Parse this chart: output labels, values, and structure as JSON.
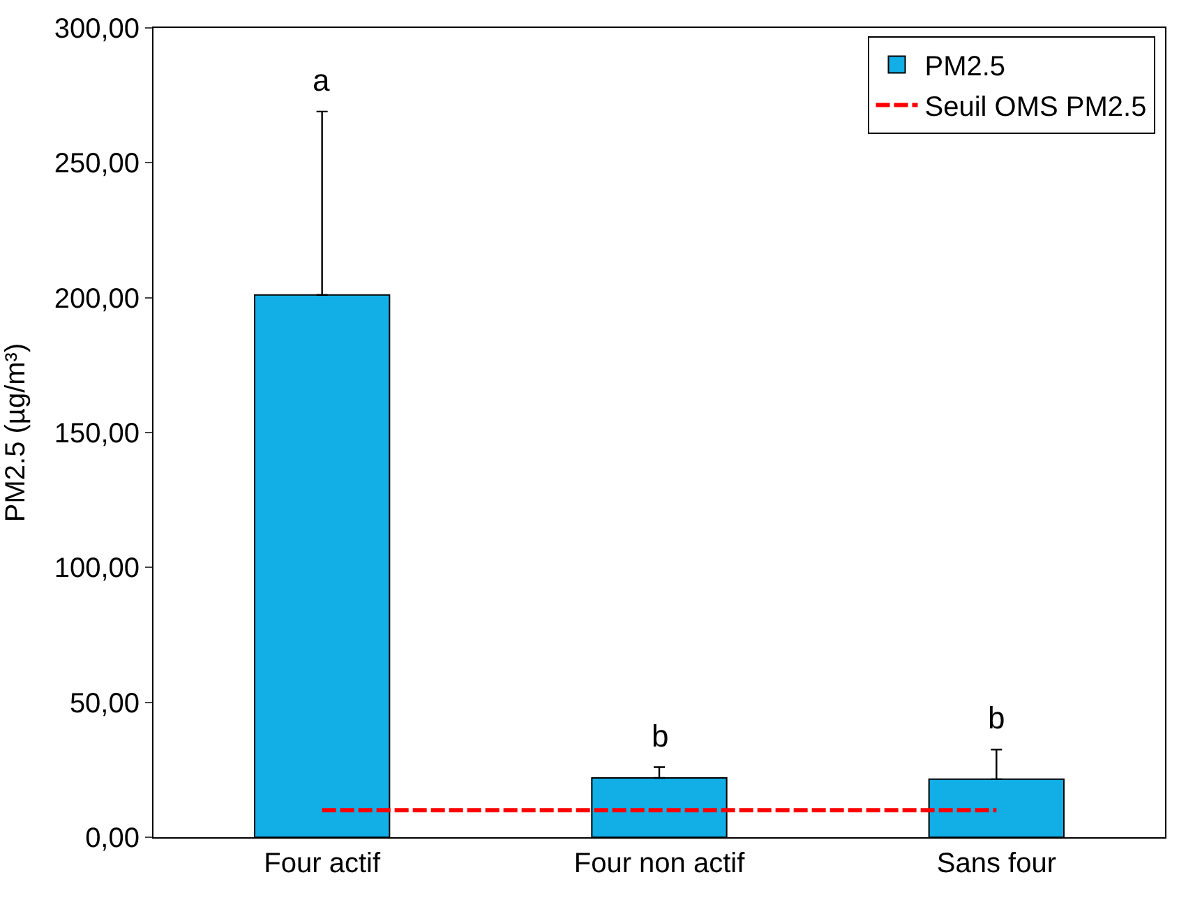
{
  "chart_data": {
    "type": "bar",
    "ylabel": "PM2.5 (µg/m³)",
    "categories": [
      "Four actif",
      "Four non actif",
      "Sans four"
    ],
    "series": [
      {
        "name": "PM2.5",
        "color": "#12aee6",
        "values": [
          201,
          22,
          21.5
        ],
        "errors": [
          [
            201,
            269
          ],
          [
            22,
            26
          ],
          [
            21.5,
            32.5
          ]
        ]
      },
      {
        "name": "Seuil OMS PM2.5",
        "type": "line",
        "color": "#ff0000",
        "values": [
          10,
          10,
          10
        ],
        "line_style": "dashed",
        "marker": "none"
      }
    ],
    "ylim": [
      0,
      300
    ],
    "yticks": [
      {
        "value": 0,
        "label": "0,00"
      },
      {
        "value": 50,
        "label": "50,00"
      },
      {
        "value": 100,
        "label": "100,00"
      },
      {
        "value": 150,
        "label": "150,00"
      },
      {
        "value": 200,
        "label": "200,00"
      },
      {
        "value": 250,
        "label": "250,00"
      },
      {
        "value": 300,
        "label": "300,00"
      }
    ],
    "annotations": [
      "a",
      "b",
      "b"
    ],
    "legend": "top right"
  }
}
